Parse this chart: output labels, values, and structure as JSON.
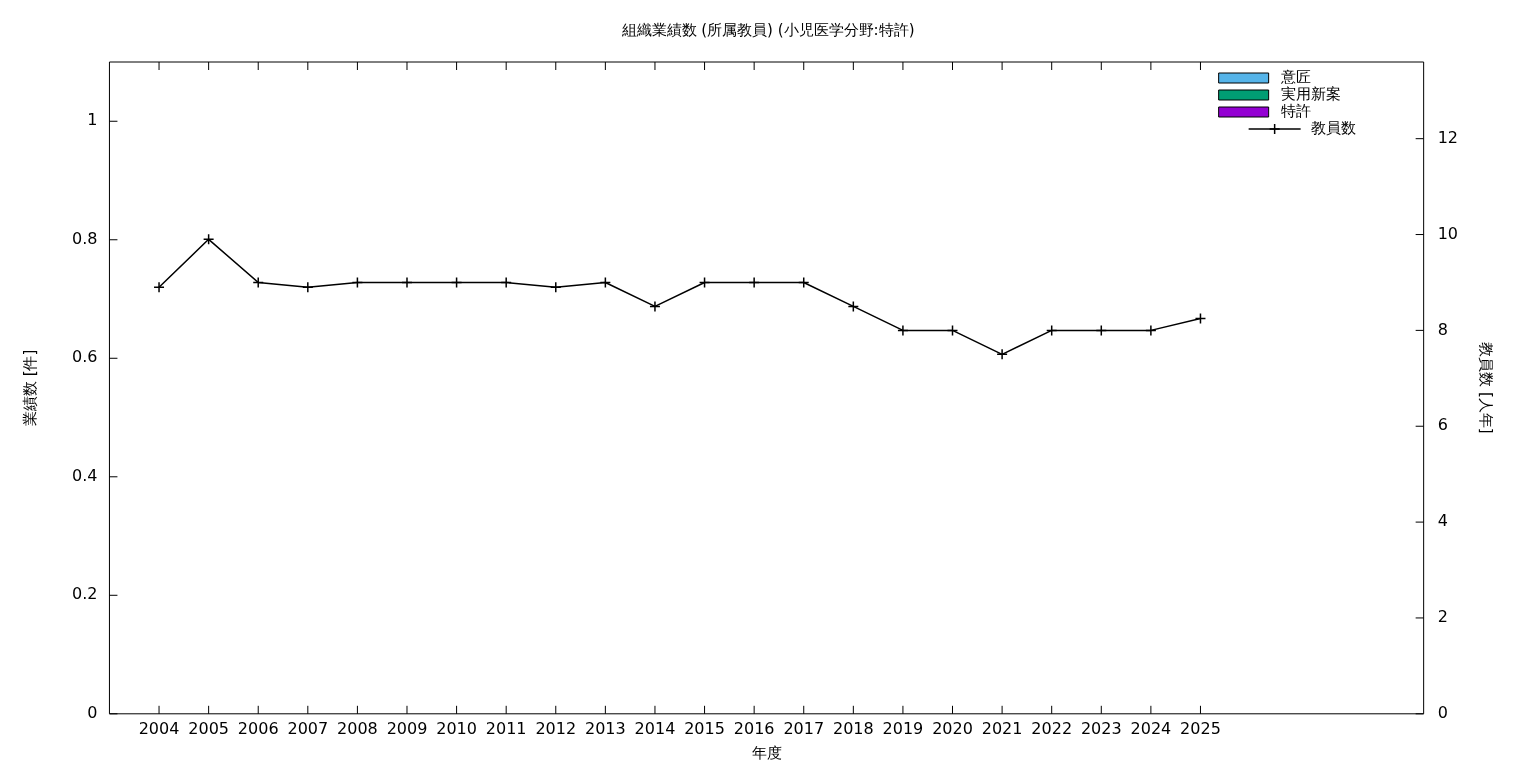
{
  "chart_data": {
    "type": "bar",
    "title": "組織業績数 (所属教員) (小児医学分野:特許)",
    "xlabel": "年度",
    "ylabel": "業績数 [件]",
    "y2label": "教員数 [人年]",
    "x": [
      2004,
      2005,
      2006,
      2007,
      2008,
      2009,
      2010,
      2011,
      2012,
      2013,
      2014,
      2015,
      2016,
      2017,
      2018,
      2019,
      2020,
      2021,
      2022,
      2023,
      2024,
      2025
    ],
    "xlim": [
      2003,
      2029.5
    ],
    "xticks": [
      2004,
      2005,
      2006,
      2007,
      2008,
      2009,
      2010,
      2011,
      2012,
      2013,
      2014,
      2015,
      2016,
      2017,
      2018,
      2019,
      2020,
      2021,
      2022,
      2023,
      2024,
      2025
    ],
    "ylim": [
      0,
      1.1
    ],
    "yticks": [
      0,
      0.2,
      0.4,
      0.6,
      0.8,
      1
    ],
    "y2lim": [
      0,
      13.6
    ],
    "y2ticks": [
      0,
      2,
      4,
      6,
      8,
      10,
      12
    ],
    "grid": false,
    "legend": "top right",
    "series": [
      {
        "name": "意匠",
        "color": "#56b4e9",
        "values": [
          0,
          0,
          0,
          0,
          0,
          0,
          0,
          0,
          0,
          0,
          0,
          0,
          0,
          0,
          0,
          0,
          0,
          0,
          0,
          0,
          0,
          0
        ]
      },
      {
        "name": "実用新案",
        "color": "#009e73",
        "values": [
          0,
          0,
          0,
          0,
          0,
          0,
          0,
          0,
          0,
          0,
          0,
          0,
          0,
          0,
          0,
          0,
          0,
          0,
          0,
          0,
          0,
          0
        ]
      },
      {
        "name": "特許",
        "color": "#9400d3",
        "values": [
          0,
          0,
          0,
          0,
          0,
          0,
          0,
          0,
          0,
          0,
          0,
          0,
          0,
          0,
          0,
          0,
          0,
          0,
          0,
          0,
          0,
          0
        ]
      },
      {
        "name": "教員数",
        "type": "line",
        "axis": "y2",
        "color": "#000000",
        "marker": "cross",
        "line_style": "solid",
        "values": [
          8.9,
          9.9,
          9,
          8.9,
          9,
          9,
          9,
          9,
          8.9,
          9,
          8.5,
          9,
          9,
          9,
          8.5,
          8,
          8,
          7.5,
          8,
          8,
          8,
          8.25
        ]
      }
    ]
  }
}
